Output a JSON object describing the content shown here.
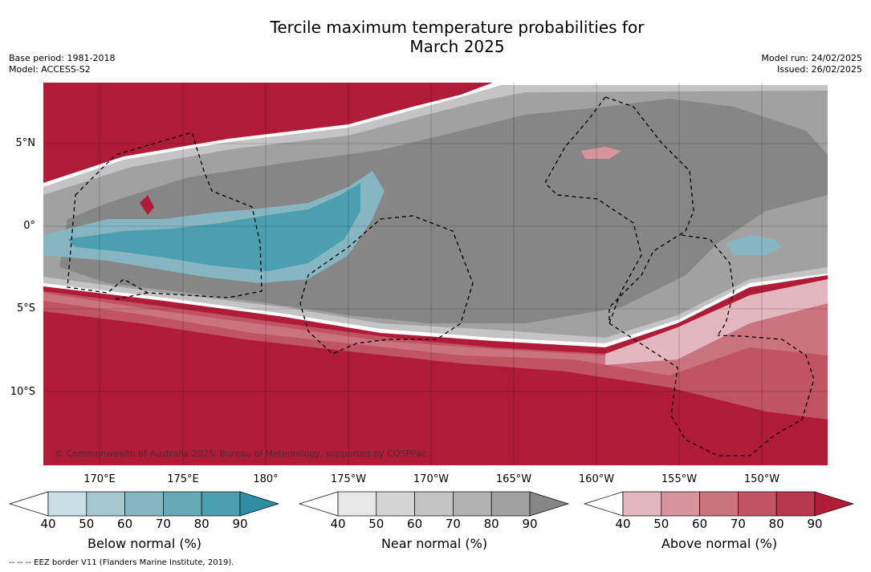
{
  "title": {
    "line1": "Tercile maximum temperature probabilities for",
    "line2": "March 2025"
  },
  "meta": {
    "base_period": "Base period: 1981-2018",
    "model": "Model: ACCESS-S2",
    "model_run": "Model run: 24/02/2025",
    "issued": "Issued: 26/02/2025"
  },
  "map": {
    "lat_labels": [
      "5°N",
      "0°",
      "5°S",
      "10°S"
    ],
    "lon_labels": [
      "170°E",
      "175°E",
      "180°",
      "175°W",
      "170°W",
      "165°W",
      "160°W",
      "155°W",
      "150°W"
    ],
    "copyright": "© Commonwealth of Australia 2025, Bureau of Meteorology, supported by COSPPac"
  },
  "colorbars": [
    {
      "name": "Below normal (%)",
      "ticks": [
        "40",
        "50",
        "60",
        "70",
        "80",
        "90"
      ],
      "colors": [
        "#ffffff",
        "#c6dfe5",
        "#a5c8cf",
        "#86b6c1",
        "#67a9b6",
        "#4b9fae",
        "#2e8fa3"
      ]
    },
    {
      "name": "Near normal (%)",
      "ticks": [
        "40",
        "50",
        "60",
        "70",
        "80",
        "90"
      ],
      "colors": [
        "#ffffff",
        "#e6e6e6",
        "#d4d4d4",
        "#c4c4c4",
        "#b2b2b2",
        "#a1a1a1",
        "#868686"
      ]
    },
    {
      "name": "Above normal (%)",
      "ticks": [
        "40",
        "50",
        "60",
        "70",
        "80",
        "90"
      ],
      "colors": [
        "#ffffff",
        "#e2b7bd",
        "#d8949d",
        "#cb737f",
        "#c05463",
        "#b8394c",
        "#b01c38"
      ]
    }
  ],
  "footnote": "--  --  -- EEZ border V11 (Flanders Marine Institute, 2019)."
}
